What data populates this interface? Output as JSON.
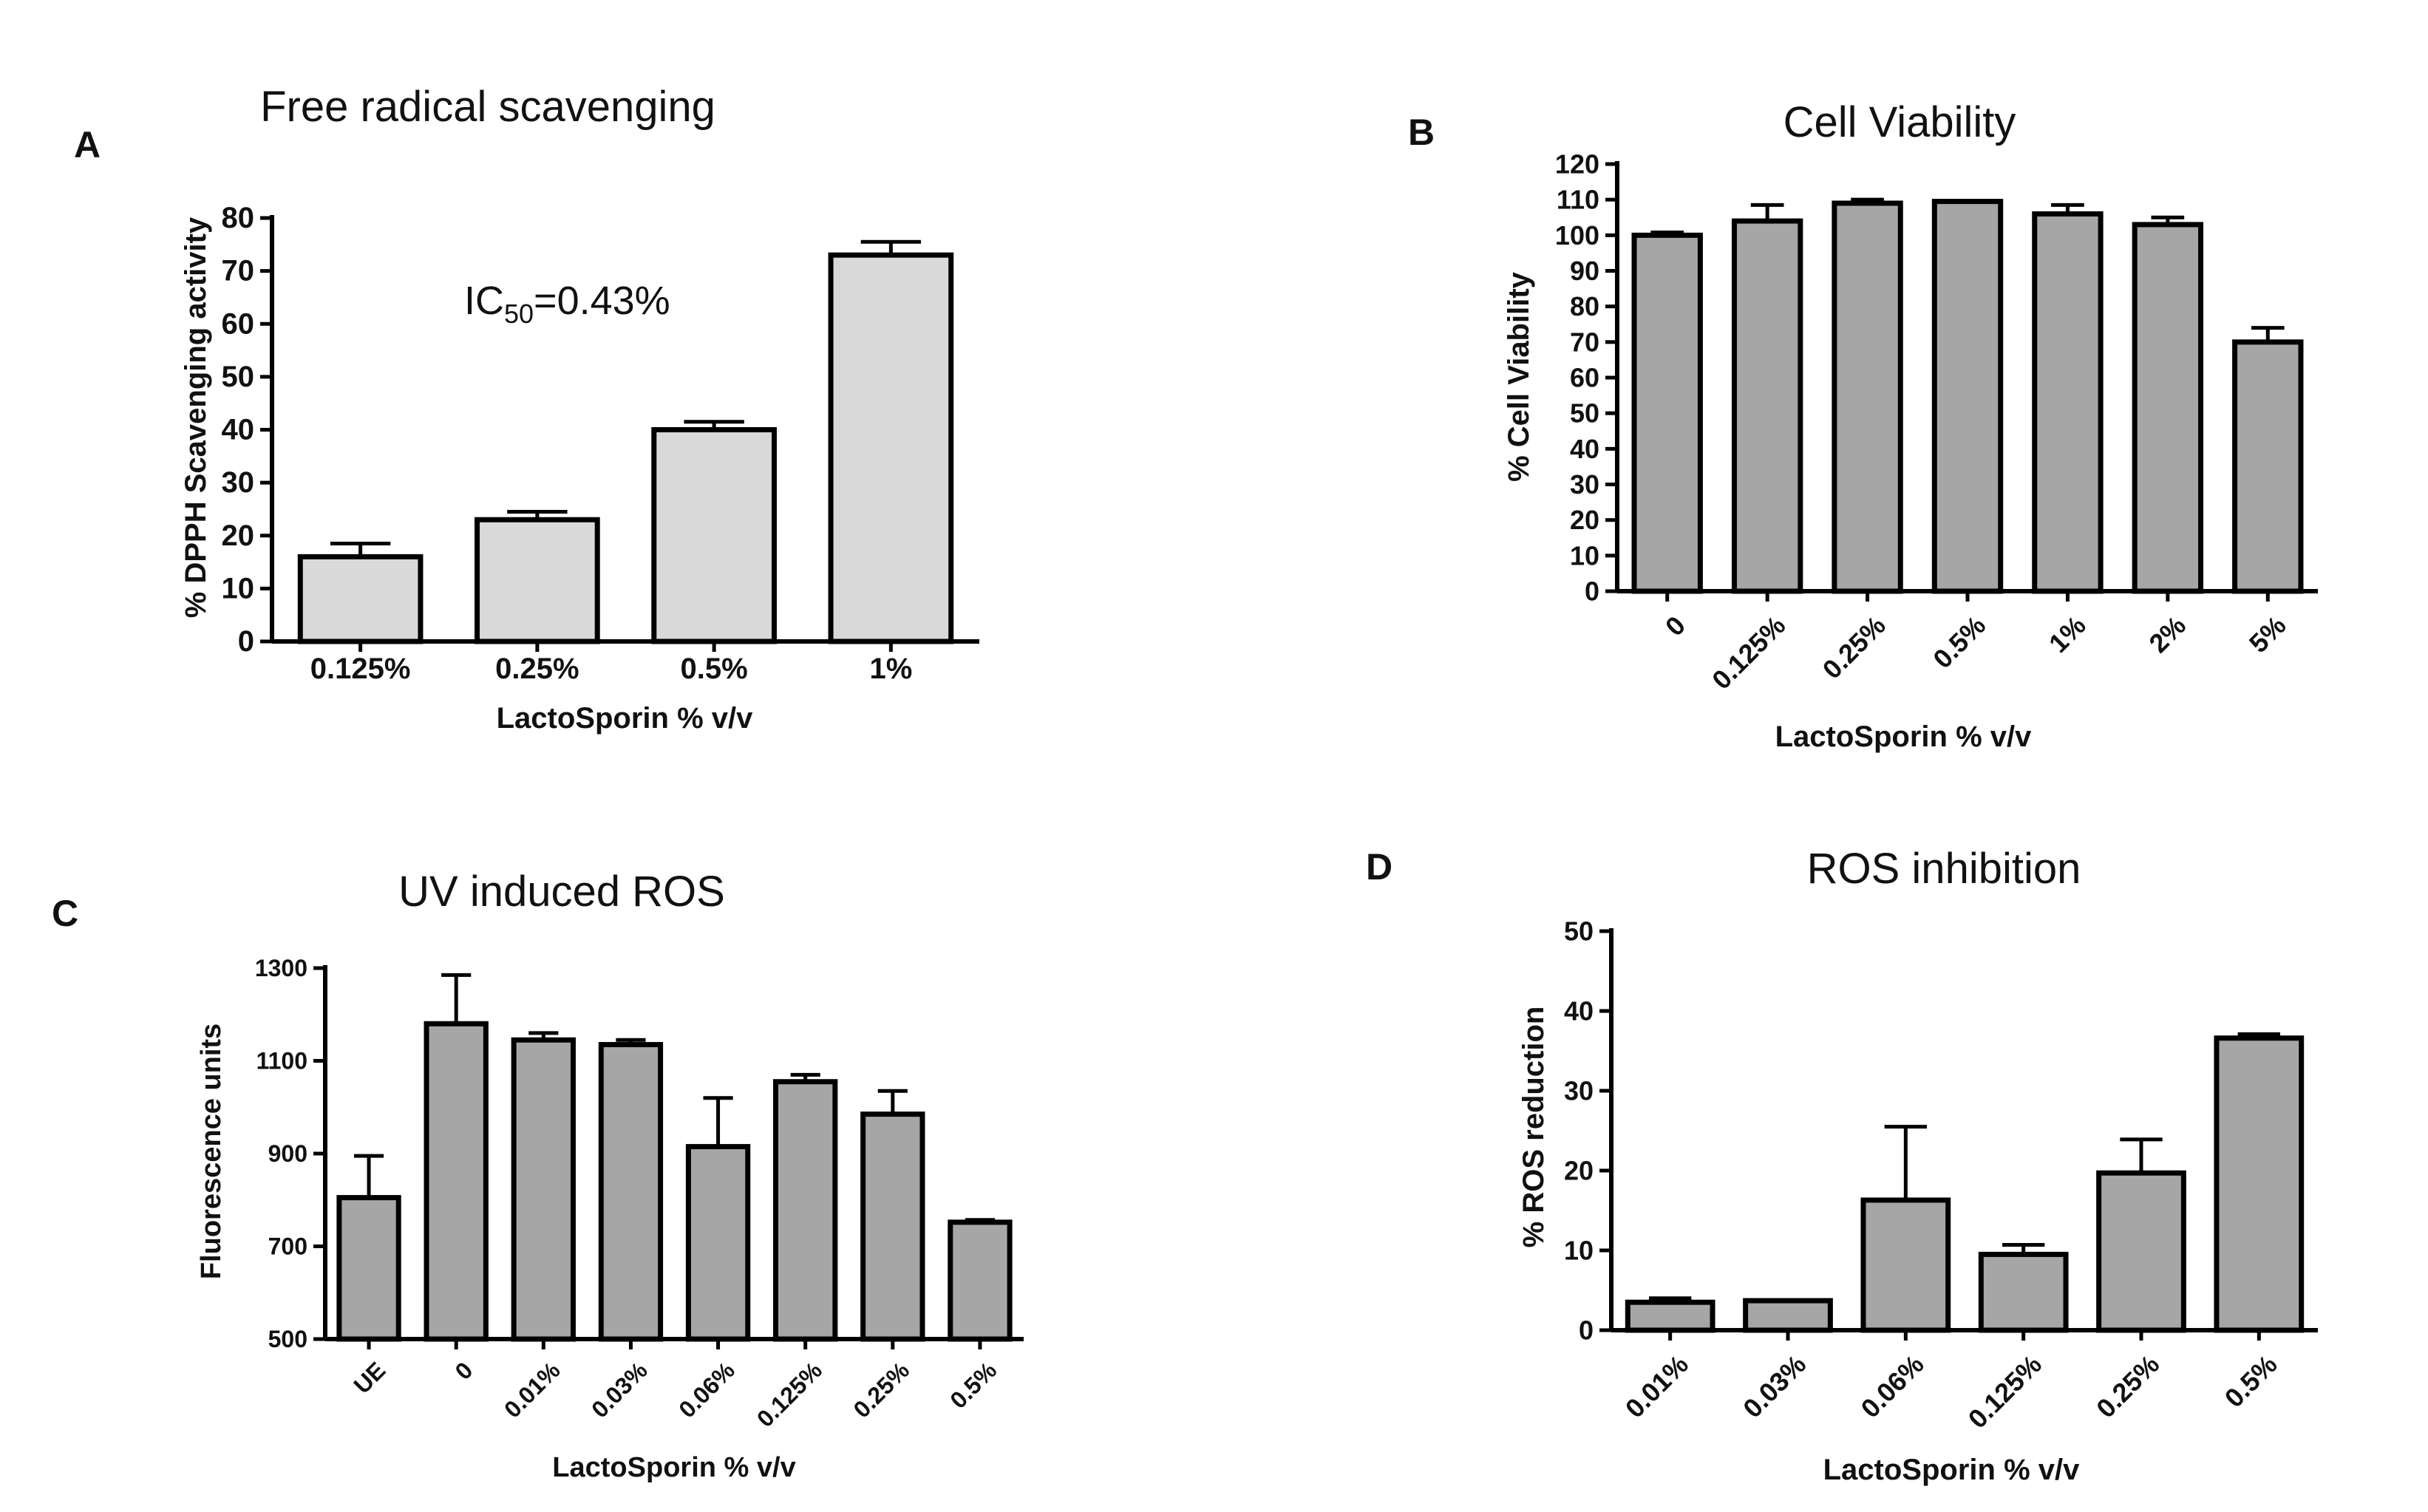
{
  "chart_data": [
    {
      "panel": "A",
      "type": "bar",
      "title": "Free radical scavenging",
      "xlabel": "LactoSporin % v/v",
      "ylabel": "% DPPH Scavenging activity",
      "categories": [
        "0.125%",
        "0.25%",
        "0.5%",
        "1%"
      ],
      "values": [
        16,
        23,
        40,
        73
      ],
      "errors": [
        2.5,
        1.5,
        1.5,
        2.5
      ],
      "ylim": [
        0,
        80
      ],
      "yticks": [
        0,
        10,
        20,
        30,
        40,
        50,
        60,
        70,
        80
      ],
      "bar_color": "#d9d9d9",
      "annotation": {
        "prefix": "IC",
        "subscript": "50",
        "suffix": "=0.43%"
      }
    },
    {
      "panel": "B",
      "type": "bar",
      "title": "Cell Viability",
      "xlabel": "LactoSporin % v/v",
      "ylabel": "% Cell Viability",
      "categories": [
        "0",
        "0.125%",
        "0.25%",
        "0.5%",
        "1%",
        "2%",
        "5%"
      ],
      "values": [
        100,
        104,
        109,
        109.5,
        106,
        103,
        70
      ],
      "errors": [
        0.8,
        4.5,
        1,
        0,
        2.5,
        2,
        4
      ],
      "ylim": [
        0,
        120
      ],
      "yticks": [
        0,
        10,
        20,
        30,
        40,
        50,
        60,
        70,
        80,
        90,
        100,
        110,
        120
      ],
      "bar_color": "#a6a6a6"
    },
    {
      "panel": "C",
      "type": "bar",
      "title": "UV induced ROS",
      "xlabel": "LactoSporin % v/v",
      "ylabel": "Fluorescence units",
      "categories": [
        "UE",
        "0",
        "0.01%",
        "0.03%",
        "0.06%",
        "0.125%",
        "0.25%",
        "0.5%"
      ],
      "values": [
        805,
        1180,
        1145,
        1135,
        915,
        1055,
        985,
        752
      ],
      "errors": [
        90,
        105,
        15,
        10,
        105,
        15,
        50,
        5
      ],
      "ylim": [
        500,
        1300
      ],
      "yticks": [
        500,
        700,
        900,
        1100,
        1300
      ],
      "bar_color": "#a6a6a6"
    },
    {
      "panel": "D",
      "type": "bar",
      "title": "ROS inhibition",
      "xlabel": "LactoSporin % v/v",
      "ylabel": "% ROS reduction",
      "categories": [
        "0.01%",
        "0.03%",
        "0.06%",
        "0.125%",
        "0.25%",
        "0.5%"
      ],
      "values": [
        3.5,
        3.7,
        16.3,
        9.5,
        19.7,
        36.6
      ],
      "errors": [
        0.5,
        0,
        9.2,
        1.2,
        4.2,
        0.5
      ],
      "ylim": [
        0,
        50
      ],
      "yticks": [
        0,
        10,
        20,
        30,
        40,
        50
      ],
      "bar_color": "#a6a6a6"
    }
  ]
}
